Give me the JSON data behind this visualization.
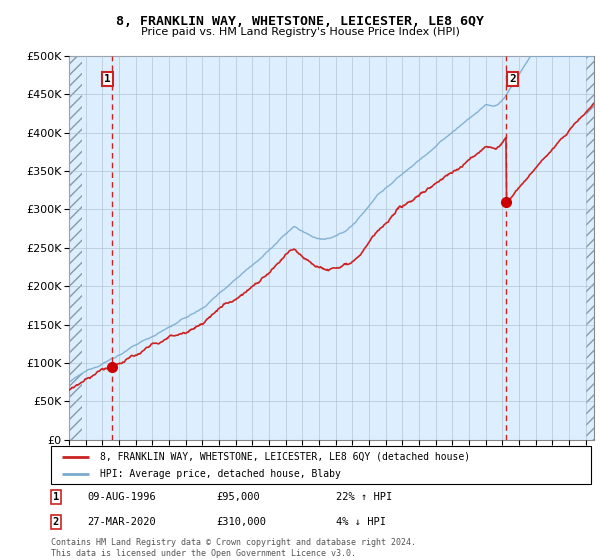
{
  "title": "8, FRANKLIN WAY, WHETSTONE, LEICESTER, LE8 6QY",
  "subtitle": "Price paid vs. HM Land Registry's House Price Index (HPI)",
  "yticks": [
    0,
    50000,
    100000,
    150000,
    200000,
    250000,
    300000,
    350000,
    400000,
    450000,
    500000
  ],
  "xmin": 1994.0,
  "xmax": 2025.5,
  "ymin": 0,
  "ymax": 500000,
  "transaction1": {
    "date_num": 1996.6,
    "price": 95000,
    "label": "1",
    "date_str": "09-AUG-1996",
    "price_str": "£95,000",
    "hpi_str": "22% ↑ HPI"
  },
  "transaction2": {
    "date_num": 2020.23,
    "price": 310000,
    "label": "2",
    "date_str": "27-MAR-2020",
    "price_str": "£310,000",
    "hpi_str": "4% ↓ HPI"
  },
  "legend_line1": "8, FRANKLIN WAY, WHETSTONE, LEICESTER, LE8 6QY (detached house)",
  "legend_line2": "HPI: Average price, detached house, Blaby",
  "footer": "Contains HM Land Registry data © Crown copyright and database right 2024.\nThis data is licensed under the Open Government Licence v3.0.",
  "hpi_color": "#7aabcf",
  "price_color": "#cc2222",
  "dashed_color": "#cc2222",
  "plot_bg_color": "#ddeeff",
  "hatch_color": "#c0c8d8",
  "grid_color": "#aabbcc"
}
